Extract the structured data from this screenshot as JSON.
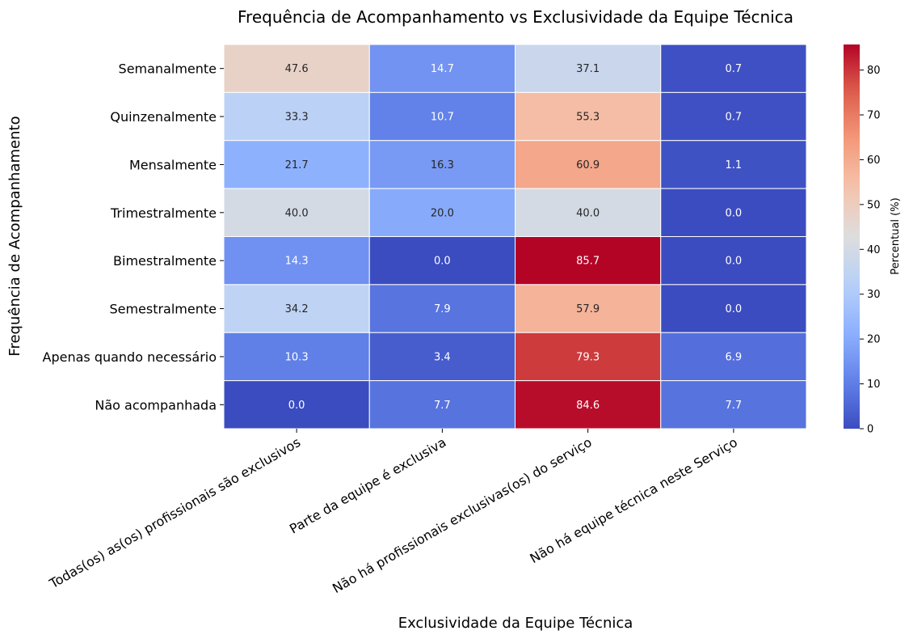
{
  "chart_data": {
    "type": "heatmap",
    "title": "Frequência de Acompanhamento vs Exclusividade da Equipe Técnica",
    "xlabel": "Exclusividade da Equipe Técnica",
    "ylabel": "Frequência de Acompanhamento",
    "x_categories": [
      "Todas(os) as(os) profissionais são exclusivos",
      "Parte da equipe é exclusiva",
      "Não há profissionais exclusivas(os) do serviço",
      "Não há equipe técnica neste Serviço"
    ],
    "y_categories": [
      "Semanalmente",
      "Quinzenalmente",
      "Mensalmente",
      "Trimestralmente",
      "Bimestralmente",
      "Semestralmente",
      "Apenas quando necessário",
      "Não acompanhada"
    ],
    "values": [
      [
        47.6,
        14.7,
        37.1,
        0.7
      ],
      [
        33.3,
        10.7,
        55.3,
        0.7
      ],
      [
        21.7,
        16.3,
        60.9,
        1.1
      ],
      [
        40.0,
        20.0,
        40.0,
        0.0
      ],
      [
        14.3,
        0.0,
        85.7,
        0.0
      ],
      [
        34.2,
        7.9,
        57.9,
        0.0
      ],
      [
        10.3,
        3.4,
        79.3,
        6.9
      ],
      [
        0.0,
        7.7,
        84.6,
        7.7
      ]
    ],
    "colormap": "coolwarm",
    "vmin": 0,
    "vmax": 85.7,
    "colorbar": {
      "label": "Percentual (%)",
      "ticks": [
        0,
        10,
        20,
        30,
        40,
        50,
        60,
        70,
        80
      ]
    }
  }
}
